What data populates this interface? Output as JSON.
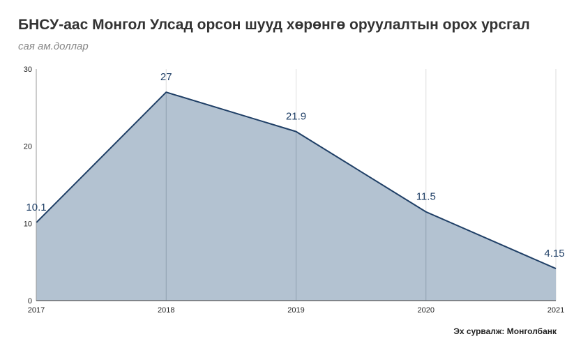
{
  "header": {
    "title": "БНСУ-аас Монгол Улсад орсон шууд хөрөнгө оруулалтын орох урсгал",
    "subtitle": "сая ам.доллар"
  },
  "footer": {
    "source": "Эх сурвалж: Монголбанк"
  },
  "colors": {
    "line": "#1f3f66",
    "area": "#b3c2d1",
    "grid": "#dddddd",
    "axis": "#999999",
    "data_label": "#1f3f66"
  },
  "chart_data": {
    "type": "area",
    "title": "БНСУ-аас Монгол Улсад орсон шууд хөрөнгө оруулалтын орох урсгал",
    "subtitle": "сая ам.доллар",
    "xlabel": "",
    "ylabel": "",
    "x": [
      "2017",
      "2018",
      "2019",
      "2020",
      "2021"
    ],
    "values": [
      10.1,
      27,
      21.9,
      11.5,
      4.15
    ],
    "data_labels": [
      "10.1",
      "27",
      "21.9",
      "11.5",
      "4.15"
    ],
    "ylim": [
      0,
      30
    ],
    "yticks": [
      0,
      10,
      20,
      30
    ],
    "grid": "vertical",
    "legend": "none"
  }
}
